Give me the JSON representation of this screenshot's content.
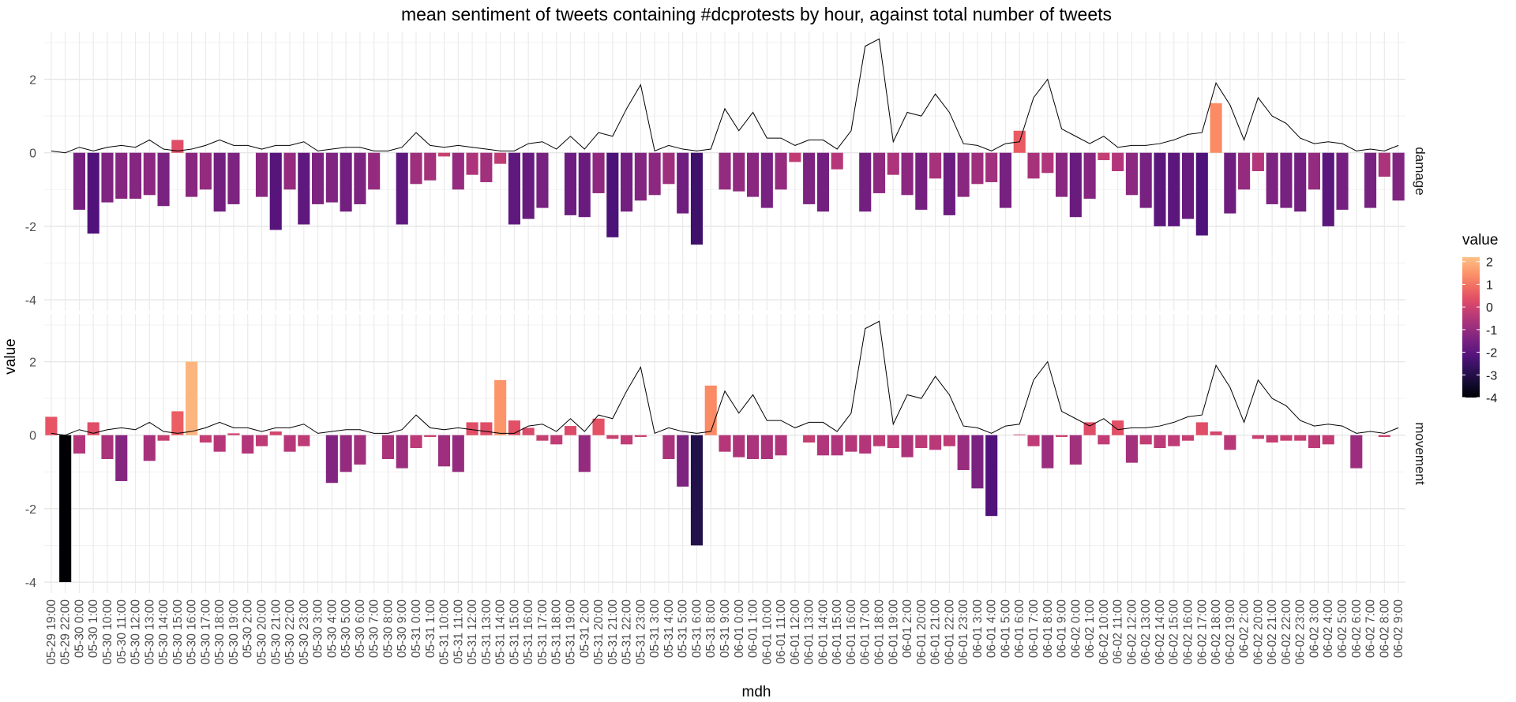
{
  "chart_data": {
    "type": "bar",
    "title": "mean sentiment of tweets containing #dcprotests by hour, against total number of tweets",
    "xlabel": "mdh",
    "ylabel": "value",
    "ylim": [
      -4.3,
      3.3
    ],
    "y_ticks": [
      -4,
      -2,
      0,
      2
    ],
    "grid": true,
    "legend": {
      "title": "value",
      "placement": "right",
      "ticks": [
        2,
        1,
        0,
        -1,
        -2,
        -3,
        -4
      ],
      "colormap": "magma",
      "range": [
        -4,
        2.2
      ]
    },
    "categories": [
      "05-29 19:00",
      "05-29 22:00",
      "05-30 0:00",
      "05-30 1:00",
      "05-30 10:00",
      "05-30 11:00",
      "05-30 12:00",
      "05-30 13:00",
      "05-30 14:00",
      "05-30 15:00",
      "05-30 16:00",
      "05-30 17:00",
      "05-30 18:00",
      "05-30 19:00",
      "05-30 2:00",
      "05-30 20:00",
      "05-30 21:00",
      "05-30 22:00",
      "05-30 23:00",
      "05-30 3:00",
      "05-30 4:00",
      "05-30 5:00",
      "05-30 6:00",
      "05-30 7:00",
      "05-30 8:00",
      "05-30 9:00",
      "05-31 0:00",
      "05-31 1:00",
      "05-31 10:00",
      "05-31 11:00",
      "05-31 12:00",
      "05-31 13:00",
      "05-31 14:00",
      "05-31 15:00",
      "05-31 16:00",
      "05-31 17:00",
      "05-31 18:00",
      "05-31 19:00",
      "05-31 2:00",
      "05-31 20:00",
      "05-31 21:00",
      "05-31 22:00",
      "05-31 23:00",
      "05-31 3:00",
      "05-31 4:00",
      "05-31 5:00",
      "05-31 6:00",
      "05-31 8:00",
      "05-31 9:00",
      "06-01 0:00",
      "06-01 1:00",
      "06-01 10:00",
      "06-01 11:00",
      "06-01 12:00",
      "06-01 13:00",
      "06-01 14:00",
      "06-01 15:00",
      "06-01 16:00",
      "06-01 17:00",
      "06-01 18:00",
      "06-01 19:00",
      "06-01 2:00",
      "06-01 20:00",
      "06-01 21:00",
      "06-01 22:00",
      "06-01 23:00",
      "06-01 3:00",
      "06-01 4:00",
      "06-01 5:00",
      "06-01 6:00",
      "06-01 7:00",
      "06-01 8:00",
      "06-01 9:00",
      "06-02 0:00",
      "06-02 1:00",
      "06-02 10:00",
      "06-02 11:00",
      "06-02 12:00",
      "06-02 13:00",
      "06-02 14:00",
      "06-02 15:00",
      "06-02 16:00",
      "06-02 17:00",
      "06-02 18:00",
      "06-02 19:00",
      "06-02 2:00",
      "06-02 20:00",
      "06-02 21:00",
      "06-02 22:00",
      "06-02 23:00",
      "06-02 3:00",
      "06-02 4:00",
      "06-02 5:00",
      "06-02 6:00",
      "06-02 7:00",
      "06-02 8:00",
      "06-02 9:00"
    ],
    "tweet_count_line": {
      "note": "total number of tweets (scaled), same line drawn in both panels",
      "values": [
        0.05,
        0.0,
        0.15,
        0.05,
        0.15,
        0.2,
        0.15,
        0.35,
        0.1,
        0.05,
        0.1,
        0.2,
        0.35,
        0.2,
        0.2,
        0.1,
        0.2,
        0.2,
        0.3,
        0.05,
        0.1,
        0.15,
        0.15,
        0.05,
        0.05,
        0.15,
        0.55,
        0.2,
        0.15,
        0.2,
        0.15,
        0.1,
        0.05,
        0.05,
        0.25,
        0.3,
        0.1,
        0.45,
        0.1,
        0.55,
        0.45,
        1.2,
        1.85,
        0.05,
        0.2,
        0.1,
        0.05,
        0.1,
        1.2,
        0.6,
        1.1,
        0.4,
        0.4,
        0.2,
        0.35,
        0.35,
        0.1,
        0.6,
        2.9,
        3.1,
        0.3,
        1.1,
        1.0,
        1.6,
        1.1,
        0.25,
        0.2,
        0.05,
        0.25,
        0.3,
        1.5,
        2.0,
        0.65,
        0.45,
        0.25,
        0.45,
        0.15,
        0.2,
        0.2,
        0.25,
        0.35,
        0.5,
        0.55,
        1.9,
        1.3,
        0.35,
        1.5,
        1.0,
        0.8,
        0.4,
        0.25,
        0.3,
        0.25,
        0.05,
        0.1,
        0.05,
        0.2
      ]
    },
    "panels": [
      {
        "name": "damage",
        "values": [
          0,
          0,
          -1.55,
          -2.2,
          -1.35,
          -1.25,
          -1.25,
          -1.15,
          -1.45,
          0.35,
          -1.2,
          -1.0,
          -1.6,
          -1.4,
          0,
          -1.2,
          -2.1,
          -1.0,
          -1.95,
          -1.4,
          -1.35,
          -1.6,
          -1.4,
          -1.0,
          0,
          -1.95,
          -0.85,
          -0.75,
          -0.1,
          -1.0,
          -0.6,
          -0.8,
          -0.3,
          -1.95,
          -1.8,
          -1.5,
          0,
          -1.7,
          -1.75,
          -1.1,
          -2.3,
          -1.6,
          -1.3,
          -1.15,
          -0.85,
          -1.65,
          -2.5,
          0,
          -1.0,
          -1.05,
          -1.2,
          -1.5,
          -1.0,
          -0.25,
          -1.4,
          -1.6,
          -0.45,
          0,
          -1.6,
          -1.1,
          -0.6,
          -1.15,
          -1.55,
          -0.7,
          -1.7,
          -1.2,
          -0.85,
          -0.8,
          -1.5,
          0.6,
          -0.7,
          -0.55,
          -1.2,
          -1.75,
          -1.25,
          -0.2,
          -0.5,
          -1.15,
          -1.5,
          -2.0,
          -2.0,
          -1.8,
          -2.25,
          1.35,
          -1.65,
          -1.0,
          -0.5,
          -1.4,
          -1.5,
          -1.6,
          -1.0,
          -2.0,
          -1.55,
          0,
          -1.5,
          -0.65,
          -1.3
        ]
      },
      {
        "name": "movement",
        "values": [
          0.5,
          -4.0,
          -0.5,
          0.35,
          -0.65,
          -1.25,
          0,
          -0.7,
          -0.15,
          0.65,
          2.0,
          -0.2,
          -0.45,
          0.05,
          -0.5,
          -0.3,
          0.1,
          -0.45,
          -0.3,
          0,
          -1.3,
          -1.0,
          -0.8,
          0,
          -0.65,
          -0.9,
          -0.35,
          -0.05,
          -0.85,
          -1.0,
          0.35,
          0.35,
          1.5,
          0.4,
          0.2,
          -0.15,
          -0.25,
          0.25,
          -1.0,
          0.45,
          -0.1,
          -0.25,
          -0.05,
          0,
          -0.65,
          -1.4,
          -3.0,
          1.35,
          -0.45,
          -0.6,
          -0.65,
          -0.65,
          -0.55,
          0,
          -0.2,
          -0.55,
          -0.55,
          -0.45,
          -0.5,
          -0.3,
          -0.35,
          -0.6,
          -0.35,
          -0.4,
          -0.3,
          -0.95,
          -1.45,
          -2.2,
          0,
          0.02,
          -0.3,
          -0.9,
          -0.05,
          -0.8,
          0.35,
          -0.25,
          0.4,
          -0.75,
          -0.25,
          -0.35,
          -0.3,
          -0.15,
          0.35,
          0.1,
          -0.4,
          0,
          -0.1,
          -0.2,
          -0.15,
          -0.15,
          -0.35,
          -0.25,
          0,
          -0.9,
          0,
          -0.05,
          0
        ]
      }
    ]
  }
}
